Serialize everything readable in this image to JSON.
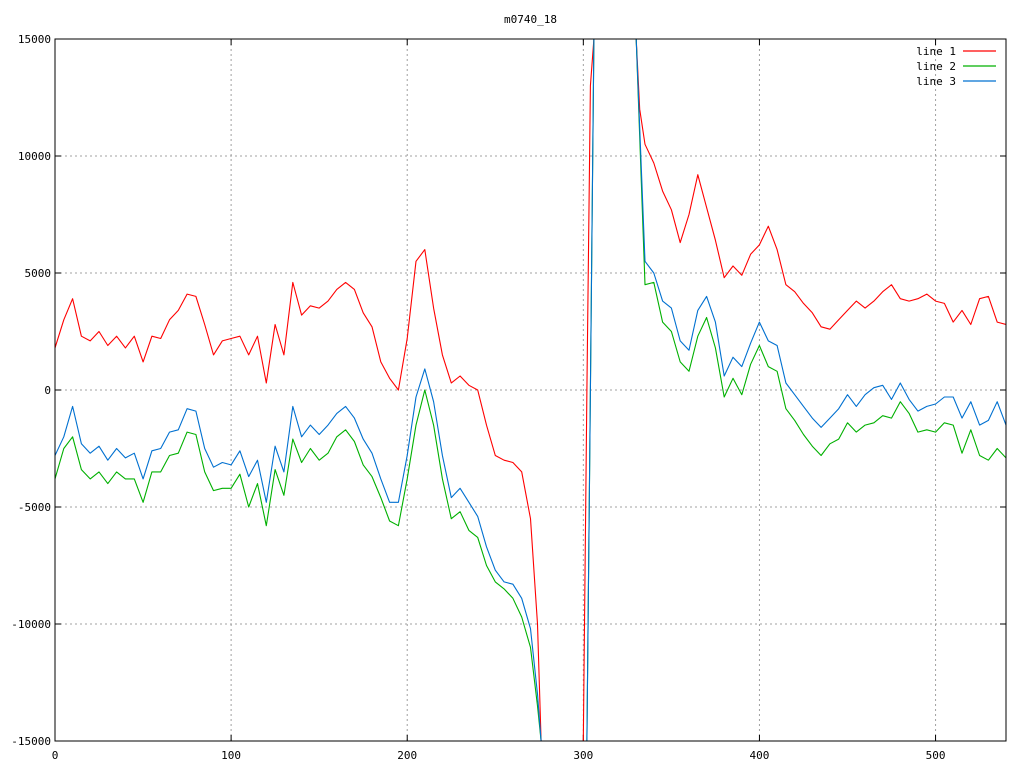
{
  "chart_data": {
    "type": "line",
    "title": "m0740_18",
    "xlabel": "",
    "ylabel": "",
    "xlim": [
      0,
      540
    ],
    "ylim": [
      -15000,
      15000
    ],
    "xticks": [
      0,
      100,
      200,
      300,
      400,
      500
    ],
    "yticks": [
      -15000,
      -10000,
      -5000,
      0,
      5000,
      10000,
      15000
    ],
    "grid": true,
    "legend_position": "top-right",
    "series": [
      {
        "name": "line 1",
        "color": "#ff0000",
        "x": [
          0,
          5,
          10,
          15,
          20,
          25,
          30,
          35,
          40,
          45,
          50,
          55,
          60,
          65,
          70,
          75,
          80,
          85,
          90,
          95,
          100,
          105,
          110,
          115,
          120,
          125,
          130,
          135,
          140,
          145,
          150,
          155,
          160,
          165,
          170,
          175,
          180,
          185,
          190,
          195,
          200,
          205,
          210,
          215,
          220,
          225,
          230,
          235,
          240,
          245,
          250,
          255,
          260,
          265,
          270,
          274,
          276,
          300,
          302,
          304,
          306,
          310,
          315,
          320,
          325,
          330,
          332,
          335,
          340,
          345,
          350,
          355,
          360,
          365,
          370,
          375,
          380,
          385,
          390,
          395,
          400,
          405,
          410,
          415,
          420,
          425,
          430,
          435,
          440,
          445,
          450,
          455,
          460,
          465,
          470,
          475,
          480,
          485,
          490,
          495,
          500,
          505,
          510,
          515,
          520,
          525,
          530,
          535,
          540
        ],
        "y": [
          1800,
          3000,
          3900,
          2300,
          2100,
          2500,
          1900,
          2300,
          1800,
          2300,
          1200,
          2300,
          2200,
          3000,
          3400,
          4100,
          4000,
          2800,
          1500,
          2100,
          2200,
          2300,
          1500,
          2300,
          300,
          2800,
          1500,
          4600,
          3200,
          3600,
          3500,
          3800,
          4300,
          4600,
          4300,
          3300,
          2700,
          1200,
          500,
          0,
          2200,
          5500,
          6000,
          3500,
          1500,
          300,
          600,
          200,
          0,
          -1500,
          -2800,
          -3000,
          -3100,
          -3500,
          -5500,
          -10000,
          -15000,
          -15000,
          0,
          13000,
          15000,
          15000,
          15000,
          15000,
          15000,
          15000,
          12000,
          10500,
          9700,
          8500,
          7700,
          6300,
          7500,
          9200,
          7800,
          6400,
          4800,
          5300,
          4900,
          5800,
          6200,
          7000,
          6000,
          4500,
          4200,
          3700,
          3300,
          2700,
          2600,
          3000,
          3400,
          3800,
          3500,
          3800,
          4200,
          4500,
          3900,
          3800,
          3900,
          4100,
          3800,
          3700,
          2900,
          3400,
          2800,
          3900,
          4000,
          2900,
          2800
        ]
      },
      {
        "name": "line 2",
        "color": "#00b000",
        "x": [
          0,
          5,
          10,
          15,
          20,
          25,
          30,
          35,
          40,
          45,
          50,
          55,
          60,
          65,
          70,
          75,
          80,
          85,
          90,
          95,
          100,
          105,
          110,
          115,
          120,
          125,
          130,
          135,
          140,
          145,
          150,
          155,
          160,
          165,
          170,
          175,
          180,
          185,
          190,
          195,
          200,
          205,
          210,
          215,
          220,
          225,
          230,
          235,
          240,
          245,
          250,
          255,
          260,
          265,
          270,
          274,
          276,
          302,
          304,
          306,
          310,
          315,
          320,
          325,
          330,
          335,
          340,
          345,
          350,
          355,
          360,
          365,
          370,
          375,
          380,
          385,
          390,
          395,
          400,
          405,
          410,
          415,
          420,
          425,
          430,
          435,
          440,
          445,
          450,
          455,
          460,
          465,
          470,
          475,
          480,
          485,
          490,
          495,
          500,
          505,
          510,
          515,
          520,
          525,
          530,
          535,
          540
        ],
        "y": [
          -3800,
          -2500,
          -2000,
          -3400,
          -3800,
          -3500,
          -4000,
          -3500,
          -3800,
          -3800,
          -4800,
          -3500,
          -3500,
          -2800,
          -2700,
          -1800,
          -1900,
          -3500,
          -4300,
          -4200,
          -4200,
          -3600,
          -5000,
          -4000,
          -5800,
          -3400,
          -4500,
          -2100,
          -3100,
          -2500,
          -3000,
          -2700,
          -2000,
          -1700,
          -2200,
          -3200,
          -3700,
          -4600,
          -5600,
          -5800,
          -3800,
          -1500,
          0,
          -1500,
          -3800,
          -5500,
          -5200,
          -6000,
          -6300,
          -7500,
          -8200,
          -8500,
          -8900,
          -9700,
          -11000,
          -13500,
          -15000,
          -15000,
          0,
          15000,
          15000,
          15000,
          15000,
          15000,
          15000,
          4500,
          4600,
          2900,
          2500,
          1200,
          800,
          2300,
          3100,
          1800,
          -300,
          500,
          -200,
          1100,
          1900,
          1000,
          800,
          -800,
          -1300,
          -1900,
          -2400,
          -2800,
          -2300,
          -2100,
          -1400,
          -1800,
          -1500,
          -1400,
          -1100,
          -1200,
          -500,
          -1000,
          -1800,
          -1700,
          -1800,
          -1400,
          -1500,
          -2700,
          -1700,
          -2800,
          -3000,
          -2500,
          -2900
        ]
      },
      {
        "name": "line 3",
        "color": "#0070d0",
        "x": [
          0,
          5,
          10,
          15,
          20,
          25,
          30,
          35,
          40,
          45,
          50,
          55,
          60,
          65,
          70,
          75,
          80,
          85,
          90,
          95,
          100,
          105,
          110,
          115,
          120,
          125,
          130,
          135,
          140,
          145,
          150,
          155,
          160,
          165,
          170,
          175,
          180,
          185,
          190,
          195,
          200,
          205,
          210,
          215,
          220,
          225,
          230,
          235,
          240,
          245,
          250,
          255,
          260,
          265,
          270,
          274,
          276,
          302,
          304,
          306,
          310,
          315,
          320,
          325,
          330,
          335,
          340,
          345,
          350,
          355,
          360,
          365,
          370,
          375,
          380,
          385,
          390,
          395,
          400,
          405,
          410,
          415,
          420,
          425,
          430,
          435,
          440,
          445,
          450,
          455,
          460,
          465,
          470,
          475,
          480,
          485,
          490,
          495,
          500,
          505,
          510,
          515,
          520,
          525,
          530,
          535,
          540
        ],
        "y": [
          -2800,
          -2000,
          -700,
          -2300,
          -2700,
          -2400,
          -3000,
          -2500,
          -2900,
          -2700,
          -3800,
          -2600,
          -2500,
          -1800,
          -1700,
          -800,
          -900,
          -2500,
          -3300,
          -3100,
          -3200,
          -2600,
          -3700,
          -3000,
          -4800,
          -2400,
          -3500,
          -700,
          -2000,
          -1500,
          -1900,
          -1500,
          -1000,
          -700,
          -1200,
          -2100,
          -2700,
          -3800,
          -4800,
          -4800,
          -2800,
          -300,
          900,
          -500,
          -2800,
          -4600,
          -4200,
          -4800,
          -5400,
          -6700,
          -7700,
          -8200,
          -8300,
          -8900,
          -10200,
          -13000,
          -15000,
          -15000,
          0,
          15000,
          15000,
          15000,
          15000,
          15000,
          15000,
          5500,
          5000,
          3800,
          3500,
          2100,
          1700,
          3400,
          4000,
          2900,
          600,
          1400,
          1000,
          2000,
          2900,
          2100,
          1900,
          300,
          -200,
          -700,
          -1200,
          -1600,
          -1200,
          -800,
          -200,
          -700,
          -200,
          100,
          200,
          -400,
          300,
          -400,
          -900,
          -700,
          -600,
          -300,
          -300,
          -1200,
          -500,
          -1500,
          -1300,
          -500,
          -1500
        ]
      }
    ]
  }
}
